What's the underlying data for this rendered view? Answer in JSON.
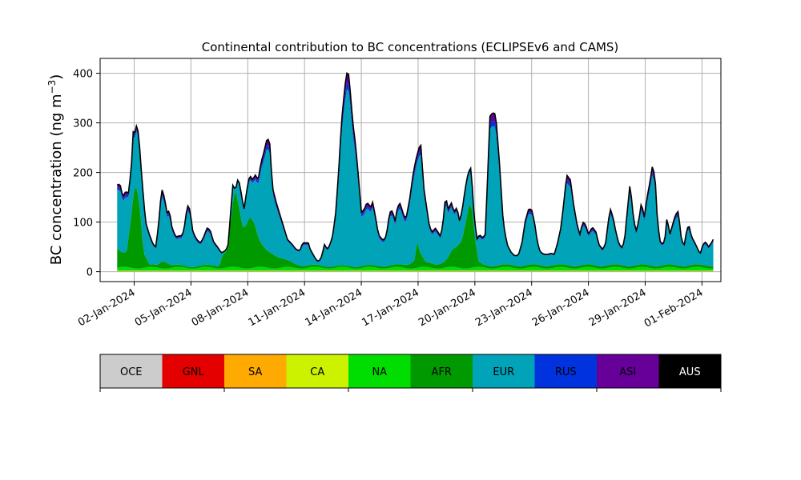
{
  "chart_data": {
    "type": "area",
    "title": "Continental contribution to BC concentrations (ECLIPSEv6 and CAMS)",
    "ylabel": "BC concentration (ng m",
    "ylabel_sup": "−3",
    "ylabel_close": ")",
    "ylim": [
      -20,
      430
    ],
    "yticks": [
      0,
      100,
      200,
      300,
      400
    ],
    "xlim": [
      0.2,
      33.0
    ],
    "grid": true,
    "xticks": [
      {
        "day": 2,
        "label": "02-Jan-2024"
      },
      {
        "day": 5,
        "label": "05-Jan-2024"
      },
      {
        "day": 8,
        "label": "08-Jan-2024"
      },
      {
        "day": 11,
        "label": "11-Jan-2024"
      },
      {
        "day": 14,
        "label": "14-Jan-2024"
      },
      {
        "day": 17,
        "label": "17-Jan-2024"
      },
      {
        "day": 20,
        "label": "20-Jan-2024"
      },
      {
        "day": 23,
        "label": "23-Jan-2024"
      },
      {
        "day": 26,
        "label": "26-Jan-2024"
      },
      {
        "day": 29,
        "label": "29-Jan-2024"
      },
      {
        "day": 32,
        "label": "01-Feb-2024"
      }
    ],
    "x_start_day": 1.1,
    "x_end_day": 32.0,
    "total_keyframes": [
      [
        1.1,
        175
      ],
      [
        1.25,
        177
      ],
      [
        1.4,
        150
      ],
      [
        1.55,
        162
      ],
      [
        1.7,
        158
      ],
      [
        1.85,
        210
      ],
      [
        1.95,
        283
      ],
      [
        2.05,
        280
      ],
      [
        2.15,
        300
      ],
      [
        2.25,
        270
      ],
      [
        2.4,
        190
      ],
      [
        2.6,
        100
      ],
      [
        2.8,
        75
      ],
      [
        3.0,
        55
      ],
      [
        3.15,
        50
      ],
      [
        3.3,
        100
      ],
      [
        3.45,
        168
      ],
      [
        3.6,
        150
      ],
      [
        3.75,
        115
      ],
      [
        3.85,
        125
      ],
      [
        4.0,
        88
      ],
      [
        4.2,
        70
      ],
      [
        4.35,
        72
      ],
      [
        4.55,
        73
      ],
      [
        4.7,
        100
      ],
      [
        4.8,
        135
      ],
      [
        4.95,
        125
      ],
      [
        5.1,
        80
      ],
      [
        5.3,
        65
      ],
      [
        5.5,
        58
      ],
      [
        5.65,
        68
      ],
      [
        5.85,
        88
      ],
      [
        6.0,
        85
      ],
      [
        6.2,
        60
      ],
      [
        6.4,
        50
      ],
      [
        6.6,
        38
      ],
      [
        6.8,
        42
      ],
      [
        6.95,
        50
      ],
      [
        7.1,
        120
      ],
      [
        7.2,
        175
      ],
      [
        7.35,
        165
      ],
      [
        7.5,
        190
      ],
      [
        7.65,
        160
      ],
      [
        7.8,
        125
      ],
      [
        7.95,
        165
      ],
      [
        8.1,
        195
      ],
      [
        8.25,
        185
      ],
      [
        8.4,
        195
      ],
      [
        8.55,
        185
      ],
      [
        8.7,
        220
      ],
      [
        8.85,
        240
      ],
      [
        9.0,
        265
      ],
      [
        9.15,
        268
      ],
      [
        9.3,
        170
      ],
      [
        9.5,
        140
      ],
      [
        9.7,
        115
      ],
      [
        9.9,
        90
      ],
      [
        10.1,
        65
      ],
      [
        10.35,
        55
      ],
      [
        10.55,
        45
      ],
      [
        10.75,
        42
      ],
      [
        10.9,
        58
      ],
      [
        11.05,
        58
      ],
      [
        11.2,
        58
      ],
      [
        11.3,
        45
      ],
      [
        11.45,
        35
      ],
      [
        11.6,
        25
      ],
      [
        11.75,
        20
      ],
      [
        11.9,
        30
      ],
      [
        12.05,
        55
      ],
      [
        12.2,
        45
      ],
      [
        12.35,
        55
      ],
      [
        12.5,
        75
      ],
      [
        12.65,
        120
      ],
      [
        12.8,
        200
      ],
      [
        12.95,
        300
      ],
      [
        13.1,
        360
      ],
      [
        13.2,
        395
      ],
      [
        13.3,
        408
      ],
      [
        13.4,
        370
      ],
      [
        13.55,
        300
      ],
      [
        13.7,
        255
      ],
      [
        13.85,
        190
      ],
      [
        14.0,
        120
      ],
      [
        14.15,
        125
      ],
      [
        14.3,
        140
      ],
      [
        14.5,
        130
      ],
      [
        14.6,
        140
      ],
      [
        14.75,
        110
      ],
      [
        14.9,
        75
      ],
      [
        15.1,
        65
      ],
      [
        15.25,
        65
      ],
      [
        15.35,
        80
      ],
      [
        15.5,
        120
      ],
      [
        15.65,
        123
      ],
      [
        15.8,
        100
      ],
      [
        15.9,
        130
      ],
      [
        16.05,
        138
      ],
      [
        16.2,
        118
      ],
      [
        16.35,
        105
      ],
      [
        16.55,
        145
      ],
      [
        16.75,
        200
      ],
      [
        16.9,
        228
      ],
      [
        17.05,
        250
      ],
      [
        17.15,
        255
      ],
      [
        17.3,
        170
      ],
      [
        17.45,
        130
      ],
      [
        17.6,
        90
      ],
      [
        17.75,
        80
      ],
      [
        17.9,
        88
      ],
      [
        18.05,
        80
      ],
      [
        18.2,
        70
      ],
      [
        18.35,
        110
      ],
      [
        18.45,
        153
      ],
      [
        18.6,
        125
      ],
      [
        18.75,
        140
      ],
      [
        18.9,
        120
      ],
      [
        19.05,
        130
      ],
      [
        19.2,
        100
      ],
      [
        19.35,
        130
      ],
      [
        19.5,
        170
      ],
      [
        19.65,
        200
      ],
      [
        19.8,
        210
      ],
      [
        19.95,
        120
      ],
      [
        20.1,
        65
      ],
      [
        20.25,
        75
      ],
      [
        20.4,
        68
      ],
      [
        20.55,
        75
      ],
      [
        20.65,
        170
      ],
      [
        20.8,
        315
      ],
      [
        20.95,
        320
      ],
      [
        21.1,
        318
      ],
      [
        21.3,
        220
      ],
      [
        21.5,
        100
      ],
      [
        21.7,
        55
      ],
      [
        21.9,
        40
      ],
      [
        22.1,
        32
      ],
      [
        22.3,
        33
      ],
      [
        22.5,
        60
      ],
      [
        22.65,
        100
      ],
      [
        22.85,
        127
      ],
      [
        23.0,
        125
      ],
      [
        23.15,
        100
      ],
      [
        23.3,
        60
      ],
      [
        23.45,
        40
      ],
      [
        23.65,
        35
      ],
      [
        23.85,
        35
      ],
      [
        24.05,
        37
      ],
      [
        24.2,
        35
      ],
      [
        24.35,
        55
      ],
      [
        24.55,
        90
      ],
      [
        24.7,
        140
      ],
      [
        24.85,
        195
      ],
      [
        25.05,
        185
      ],
      [
        25.2,
        140
      ],
      [
        25.4,
        95
      ],
      [
        25.55,
        75
      ],
      [
        25.7,
        100
      ],
      [
        25.85,
        95
      ],
      [
        26.0,
        75
      ],
      [
        26.2,
        90
      ],
      [
        26.4,
        80
      ],
      [
        26.55,
        55
      ],
      [
        26.75,
        45
      ],
      [
        26.9,
        55
      ],
      [
        27.05,
        100
      ],
      [
        27.15,
        127
      ],
      [
        27.3,
        110
      ],
      [
        27.45,
        80
      ],
      [
        27.6,
        58
      ],
      [
        27.75,
        48
      ],
      [
        27.9,
        60
      ],
      [
        28.05,
        120
      ],
      [
        28.2,
        178
      ],
      [
        28.35,
        120
      ],
      [
        28.5,
        80
      ],
      [
        28.65,
        100
      ],
      [
        28.8,
        140
      ],
      [
        28.95,
        110
      ],
      [
        29.1,
        150
      ],
      [
        29.25,
        180
      ],
      [
        29.4,
        218
      ],
      [
        29.55,
        175
      ],
      [
        29.65,
        100
      ],
      [
        29.8,
        60
      ],
      [
        29.95,
        55
      ],
      [
        30.05,
        70
      ],
      [
        30.15,
        110
      ],
      [
        30.3,
        75
      ],
      [
        30.45,
        95
      ],
      [
        30.6,
        115
      ],
      [
        30.75,
        122
      ],
      [
        30.9,
        70
      ],
      [
        31.05,
        50
      ],
      [
        31.2,
        85
      ],
      [
        31.3,
        95
      ],
      [
        31.45,
        70
      ],
      [
        31.6,
        60
      ],
      [
        31.75,
        48
      ],
      [
        31.9,
        35
      ],
      [
        32.05,
        55
      ],
      [
        32.2,
        60
      ],
      [
        32.35,
        50
      ],
      [
        32.5,
        58
      ],
      [
        32.6,
        65
      ]
    ],
    "afr_keyframes": [
      [
        1.1,
        38
      ],
      [
        1.4,
        28
      ],
      [
        1.6,
        30
      ],
      [
        1.8,
        90
      ],
      [
        2.0,
        160
      ],
      [
        2.15,
        165
      ],
      [
        2.3,
        120
      ],
      [
        2.5,
        30
      ],
      [
        2.8,
        5
      ],
      [
        3.2,
        5
      ],
      [
        3.5,
        15
      ],
      [
        3.7,
        12
      ],
      [
        4.0,
        5
      ],
      [
        5.0,
        3
      ],
      [
        6.5,
        5
      ],
      [
        7.1,
        90
      ],
      [
        7.25,
        140
      ],
      [
        7.35,
        155
      ],
      [
        7.55,
        120
      ],
      [
        7.75,
        80
      ],
      [
        7.95,
        90
      ],
      [
        8.1,
        105
      ],
      [
        8.35,
        90
      ],
      [
        8.55,
        60
      ],
      [
        8.75,
        45
      ],
      [
        9.0,
        35
      ],
      [
        9.3,
        30
      ],
      [
        9.6,
        22
      ],
      [
        10.0,
        15
      ],
      [
        10.5,
        8
      ],
      [
        11.0,
        5
      ],
      [
        13.0,
        3
      ],
      [
        16.0,
        5
      ],
      [
        16.5,
        8
      ],
      [
        16.8,
        15
      ],
      [
        16.95,
        55
      ],
      [
        17.1,
        30
      ],
      [
        17.4,
        10
      ],
      [
        18.0,
        8
      ],
      [
        18.4,
        12
      ],
      [
        18.6,
        20
      ],
      [
        18.8,
        35
      ],
      [
        19.0,
        40
      ],
      [
        19.3,
        55
      ],
      [
        19.5,
        90
      ],
      [
        19.7,
        130
      ],
      [
        19.85,
        120
      ],
      [
        20.0,
        60
      ],
      [
        20.2,
        10
      ],
      [
        20.5,
        5
      ],
      [
        32.6,
        5
      ]
    ],
    "green_base": 6,
    "layer_order": [
      "OCE",
      "GNL",
      "SA",
      "CA",
      "NA",
      "AFR",
      "EUR",
      "RUS",
      "ASI",
      "AUS"
    ],
    "legend": [
      {
        "key": "OCE",
        "label": "OCE",
        "color": "#cccccc",
        "text_color": "#000000"
      },
      {
        "key": "GNL",
        "label": "GNL",
        "color": "#e50000",
        "text_color": "#000000"
      },
      {
        "key": "SA",
        "label": "SA",
        "color": "#ffaa00",
        "text_color": "#000000"
      },
      {
        "key": "CA",
        "label": "CA",
        "color": "#ccf200",
        "text_color": "#000000"
      },
      {
        "key": "NA",
        "label": "NA",
        "color": "#00dd00",
        "text_color": "#000000"
      },
      {
        "key": "AFR",
        "label": "AFR",
        "color": "#009900",
        "text_color": "#000000"
      },
      {
        "key": "EUR",
        "label": "EUR",
        "color": "#00a3b8",
        "text_color": "#000000"
      },
      {
        "key": "RUS",
        "label": "RUS",
        "color": "#0033dd",
        "text_color": "#000000"
      },
      {
        "key": "ASI",
        "label": "ASI",
        "color": "#660099",
        "text_color": "#000000"
      },
      {
        "key": "AUS",
        "label": "AUS",
        "color": "#000000",
        "text_color": "#ffffff"
      }
    ]
  }
}
